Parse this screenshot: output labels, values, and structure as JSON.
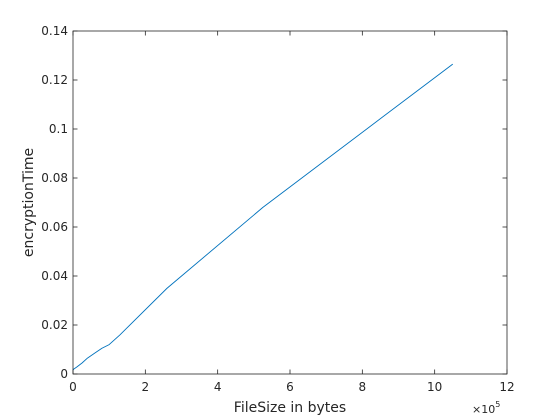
{
  "chart_data": {
    "type": "line",
    "title": "",
    "xlabel": "FileSize in bytes",
    "ylabel": "encryptionTime",
    "x_exponent_label": "×10",
    "x_exponent_power": "5",
    "xlim": [
      0,
      12
    ],
    "ylim": [
      0,
      0.14
    ],
    "xticks": [
      0,
      2,
      4,
      6,
      8,
      10,
      12
    ],
    "yticks": [
      0,
      0.02,
      0.04,
      0.06,
      0.08,
      0.1,
      0.12,
      0.14
    ],
    "xtick_labels": [
      "0",
      "2",
      "4",
      "6",
      "8",
      "10",
      "12"
    ],
    "ytick_labels": [
      "0",
      "0.02",
      "0.04",
      "0.06",
      "0.08",
      "0.1",
      "0.12",
      "0.14"
    ],
    "grid": false,
    "series": [
      {
        "color": "#0072BD",
        "x": [
          0,
          0.02,
          0.1,
          0.25,
          0.4,
          0.6,
          0.8,
          1.0,
          1.3,
          2.6,
          5.25,
          10.5
        ],
        "y": [
          0.0015,
          0.002,
          0.0028,
          0.0045,
          0.0065,
          0.0085,
          0.0105,
          0.012,
          0.016,
          0.035,
          0.068,
          0.1265
        ]
      }
    ]
  }
}
